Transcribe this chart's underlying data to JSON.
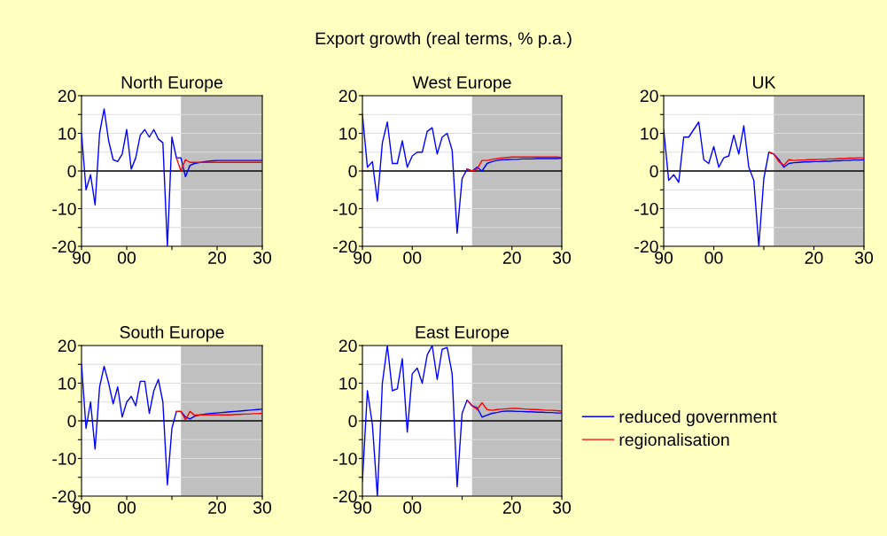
{
  "chart_data": [
    {
      "type": "line",
      "title": "North Europe",
      "annotations": [
        "Export growth (real terms, % p.a.)"
      ],
      "x": [
        1990,
        1991,
        1992,
        1993,
        1994,
        1995,
        1996,
        1997,
        1998,
        1999,
        2000,
        2001,
        2002,
        2003,
        2004,
        2005,
        2006,
        2007,
        2008,
        2009,
        2010,
        2011,
        2012,
        2013,
        2014,
        2015,
        2016,
        2017,
        2018,
        2019,
        2020,
        2021,
        2022,
        2023,
        2024,
        2025,
        2026,
        2027,
        2028,
        2029,
        2030
      ],
      "series": [
        {
          "name": "reduced government",
          "color": "#0000ff",
          "values": [
            10,
            -5,
            -1,
            -9,
            10,
            16.5,
            8,
            3,
            2.5,
            4.5,
            11,
            0.5,
            3.5,
            9.5,
            11,
            9,
            11,
            8.5,
            7.5,
            -20,
            9,
            3.5,
            3.5,
            -1.5,
            1.5,
            2,
            2.2,
            2.4,
            2.6,
            2.7,
            2.8,
            2.8,
            2.8,
            2.8,
            2.8,
            2.8,
            2.8,
            2.8,
            2.8,
            2.8,
            2.8
          ]
        },
        {
          "name": "regionalisation",
          "color": "#ff0000",
          "values": [
            null,
            null,
            null,
            null,
            null,
            null,
            null,
            null,
            null,
            null,
            null,
            null,
            null,
            null,
            null,
            null,
            null,
            null,
            null,
            null,
            null,
            3.5,
            0,
            3,
            2.3,
            2.3,
            2.3,
            2.3,
            2.3,
            2.3,
            2.3,
            2.3,
            2.3,
            2.3,
            2.3,
            2.3,
            2.3,
            2.3,
            2.3,
            2.3,
            2.3
          ]
        }
      ],
      "xlim": [
        1990,
        2030
      ],
      "xticks": [
        {
          "value": 1990,
          "label": "90"
        },
        {
          "value": 2000,
          "label": "00"
        },
        {
          "value": 2010,
          "label": null
        },
        {
          "value": 2020,
          "label": "20"
        },
        {
          "value": 2030,
          "label": "30"
        }
      ],
      "ylim": [
        -20,
        20
      ],
      "yticks": [
        -20,
        {
          "value": -15,
          "label": null
        },
        -10,
        {
          "value": -5,
          "label": null
        },
        0,
        {
          "value": 5,
          "label": null
        },
        10,
        {
          "value": 15,
          "label": null
        },
        20
      ],
      "grid": "y",
      "legend": "right",
      "bands": [
        {
          "axis": "x",
          "from": 2012,
          "to": 2030,
          "color": "#c0c0c0"
        }
      ],
      "ref_lines": [
        {
          "axis": "y",
          "value": 0,
          "color": "#000000"
        }
      ]
    },
    {
      "type": "line",
      "title": "West Europe",
      "x": [
        1990,
        1991,
        1992,
        1993,
        1994,
        1995,
        1996,
        1997,
        1998,
        1999,
        2000,
        2001,
        2002,
        2003,
        2004,
        2005,
        2006,
        2007,
        2008,
        2009,
        2010,
        2011,
        2012,
        2013,
        2014,
        2015,
        2016,
        2017,
        2018,
        2019,
        2020,
        2021,
        2022,
        2023,
        2024,
        2025,
        2026,
        2027,
        2028,
        2029,
        2030
      ],
      "series": [
        {
          "color": "#0000ff",
          "values": [
            15,
            1,
            2.5,
            -8,
            7.5,
            13,
            2,
            2,
            8,
            1,
            4,
            5,
            5,
            10.5,
            11.5,
            4.5,
            9,
            10,
            5.5,
            -16.5,
            -2,
            0.5,
            0,
            1,
            0,
            2,
            2.5,
            2.8,
            3,
            3,
            3.1,
            3.1,
            3.2,
            3.2,
            3.2,
            3.3,
            3.3,
            3.3,
            3.3,
            3.3,
            3.4
          ]
        },
        {
          "color": "#ff0000",
          "values": [
            null,
            null,
            null,
            null,
            null,
            null,
            null,
            null,
            null,
            null,
            null,
            null,
            null,
            null,
            null,
            null,
            null,
            null,
            null,
            null,
            null,
            0.5,
            0,
            0.5,
            2.8,
            2.8,
            3.1,
            3.3,
            3.5,
            3.6,
            3.7,
            3.7,
            3.7,
            3.7,
            3.7,
            3.7,
            3.7,
            3.7,
            3.7,
            3.7,
            3.6
          ]
        }
      ],
      "xlim": [
        1990,
        2030
      ],
      "xticks": [
        {
          "value": 1990,
          "label": "90"
        },
        {
          "value": 2000,
          "label": "00"
        },
        {
          "value": 2010,
          "label": null
        },
        {
          "value": 2020,
          "label": "20"
        },
        {
          "value": 2030,
          "label": "30"
        }
      ],
      "ylim": [
        -20,
        20
      ],
      "yticks": [
        -20,
        {
          "value": -15,
          "label": null
        },
        -10,
        {
          "value": -5,
          "label": null
        },
        0,
        {
          "value": 5,
          "label": null
        },
        10,
        {
          "value": 15,
          "label": null
        },
        20
      ],
      "grid": "y",
      "bands": [
        {
          "axis": "x",
          "from": 2012,
          "to": 2030,
          "color": "#c0c0c0"
        }
      ],
      "ref_lines": [
        {
          "axis": "y",
          "value": 0,
          "color": "#000000"
        }
      ]
    },
    {
      "type": "line",
      "title": "UK",
      "x": [
        1990,
        1991,
        1992,
        1993,
        1994,
        1995,
        1996,
        1997,
        1998,
        1999,
        2000,
        2001,
        2002,
        2003,
        2004,
        2005,
        2006,
        2007,
        2008,
        2009,
        2010,
        2011,
        2012,
        2013,
        2014,
        2015,
        2016,
        2017,
        2018,
        2019,
        2020,
        2021,
        2022,
        2023,
        2024,
        2025,
        2026,
        2027,
        2028,
        2029,
        2030
      ],
      "series": [
        {
          "color": "#0000ff",
          "values": [
            11,
            -2.5,
            -1,
            -3,
            9,
            9,
            11,
            13,
            3,
            2,
            6.5,
            1,
            3.5,
            4,
            9.5,
            4.5,
            12,
            1,
            -2.5,
            -20,
            -2,
            5,
            4.5,
            3,
            1,
            2,
            2.2,
            2.3,
            2.4,
            2.4,
            2.5,
            2.5,
            2.6,
            2.6,
            2.7,
            2.7,
            2.8,
            2.8,
            2.9,
            2.9,
            3
          ]
        },
        {
          "color": "#ff0000",
          "values": [
            null,
            null,
            null,
            null,
            null,
            null,
            null,
            null,
            null,
            null,
            null,
            null,
            null,
            null,
            null,
            null,
            null,
            null,
            null,
            null,
            null,
            5,
            4.5,
            2.5,
            1.5,
            3,
            2.8,
            2.9,
            2.9,
            3,
            3,
            3.1,
            3.1,
            3.2,
            3.2,
            3.3,
            3.3,
            3.4,
            3.4,
            3.5,
            3.5
          ]
        }
      ],
      "xlim": [
        1990,
        2030
      ],
      "xticks": [
        {
          "value": 1990,
          "label": "90"
        },
        {
          "value": 2000,
          "label": "00"
        },
        {
          "value": 2010,
          "label": null
        },
        {
          "value": 2020,
          "label": "20"
        },
        {
          "value": 2030,
          "label": "30"
        }
      ],
      "ylim": [
        -20,
        20
      ],
      "yticks": [
        -20,
        {
          "value": -15,
          "label": null
        },
        -10,
        {
          "value": -5,
          "label": null
        },
        0,
        {
          "value": 5,
          "label": null
        },
        10,
        {
          "value": 15,
          "label": null
        },
        20
      ],
      "grid": "y",
      "bands": [
        {
          "axis": "x",
          "from": 2012,
          "to": 2030,
          "color": "#c0c0c0"
        }
      ],
      "ref_lines": [
        {
          "axis": "y",
          "value": 0,
          "color": "#000000"
        }
      ]
    },
    {
      "type": "line",
      "title": "South Europe",
      "x": [
        1990,
        1991,
        1992,
        1993,
        1994,
        1995,
        1996,
        1997,
        1998,
        1999,
        2000,
        2001,
        2002,
        2003,
        2004,
        2005,
        2006,
        2007,
        2008,
        2009,
        2010,
        2011,
        2012,
        2013,
        2014,
        2015,
        2016,
        2017,
        2018,
        2019,
        2020,
        2021,
        2022,
        2023,
        2024,
        2025,
        2026,
        2027,
        2028,
        2029,
        2030
      ],
      "series": [
        {
          "color": "#0000ff",
          "values": [
            15,
            -2,
            5,
            -7.5,
            9,
            14.5,
            10,
            4.5,
            9,
            1,
            5,
            6.5,
            4,
            10.5,
            10.5,
            2,
            8,
            11,
            5,
            -17,
            -2,
            2.5,
            2.5,
            1,
            0.5,
            1.2,
            1.5,
            1.7,
            1.9,
            2,
            2.1,
            2.2,
            2.3,
            2.4,
            2.5,
            2.6,
            2.7,
            2.8,
            2.9,
            3,
            3.1
          ]
        },
        {
          "color": "#ff0000",
          "values": [
            null,
            null,
            null,
            null,
            null,
            null,
            null,
            null,
            null,
            null,
            null,
            null,
            null,
            null,
            null,
            null,
            null,
            null,
            null,
            null,
            null,
            2.5,
            2.5,
            0.3,
            2.5,
            1.5,
            1.6,
            1.6,
            1.6,
            1.6,
            1.6,
            1.6,
            1.6,
            1.6,
            1.7,
            1.7,
            1.8,
            1.8,
            1.9,
            1.9,
            2
          ]
        }
      ],
      "xlim": [
        1990,
        2030
      ],
      "xticks": [
        {
          "value": 1990,
          "label": "90"
        },
        {
          "value": 2000,
          "label": "00"
        },
        {
          "value": 2010,
          "label": null
        },
        {
          "value": 2020,
          "label": "20"
        },
        {
          "value": 2030,
          "label": "30"
        }
      ],
      "ylim": [
        -20,
        20
      ],
      "yticks": [
        -20,
        {
          "value": -15,
          "label": null
        },
        -10,
        {
          "value": -5,
          "label": null
        },
        0,
        {
          "value": 5,
          "label": null
        },
        10,
        {
          "value": 15,
          "label": null
        },
        20
      ],
      "grid": "y",
      "bands": [
        {
          "axis": "x",
          "from": 2012,
          "to": 2030,
          "color": "#c0c0c0"
        }
      ],
      "ref_lines": [
        {
          "axis": "y",
          "value": 0,
          "color": "#000000"
        }
      ]
    },
    {
      "type": "line",
      "title": "East Europe",
      "x": [
        1990,
        1991,
        1992,
        1993,
        1994,
        1995,
        1996,
        1997,
        1998,
        1999,
        2000,
        2001,
        2002,
        2003,
        2004,
        2005,
        2006,
        2007,
        2008,
        2009,
        2010,
        2011,
        2012,
        2013,
        2014,
        2015,
        2016,
        2017,
        2018,
        2019,
        2020,
        2021,
        2022,
        2023,
        2024,
        2025,
        2026,
        2027,
        2028,
        2029,
        2030
      ],
      "series": [
        {
          "color": "#0000ff",
          "values": [
            -16,
            8,
            -1,
            -20,
            10,
            20,
            8,
            8.5,
            16.5,
            -3,
            12.5,
            14,
            10,
            17.5,
            20,
            11,
            19,
            19.5,
            12.5,
            -17.5,
            2,
            5.5,
            4,
            3.5,
            1,
            1.5,
            2,
            2.2,
            2.5,
            2.6,
            2.6,
            2.5,
            2.5,
            2.4,
            2.4,
            2.3,
            2.3,
            2.2,
            2.2,
            2.1,
            2.1
          ]
        },
        {
          "color": "#ff0000",
          "values": [
            null,
            null,
            null,
            null,
            null,
            null,
            null,
            null,
            null,
            null,
            null,
            null,
            null,
            null,
            null,
            null,
            null,
            null,
            null,
            null,
            null,
            5.5,
            4,
            3,
            4.8,
            3,
            2.8,
            3,
            3.1,
            3.2,
            3.3,
            3.3,
            3.2,
            3.1,
            3,
            3,
            2.9,
            2.8,
            2.8,
            2.7,
            2.6
          ]
        }
      ],
      "xlim": [
        1990,
        2030
      ],
      "xticks": [
        {
          "value": 1990,
          "label": "90"
        },
        {
          "value": 2000,
          "label": "00"
        },
        {
          "value": 2010,
          "label": null
        },
        {
          "value": 2020,
          "label": "20"
        },
        {
          "value": 2030,
          "label": "30"
        }
      ],
      "ylim": [
        -20,
        20
      ],
      "yticks": [
        -20,
        {
          "value": -15,
          "label": null
        },
        -10,
        {
          "value": -5,
          "label": null
        },
        0,
        {
          "value": 5,
          "label": null
        },
        10,
        {
          "value": 15,
          "label": null
        },
        20
      ],
      "grid": "y",
      "bands": [
        {
          "axis": "x",
          "from": 2012,
          "to": 2030,
          "color": "#c0c0c0"
        }
      ],
      "ref_lines": [
        {
          "axis": "y",
          "value": 0,
          "color": "#000000"
        }
      ]
    }
  ]
}
